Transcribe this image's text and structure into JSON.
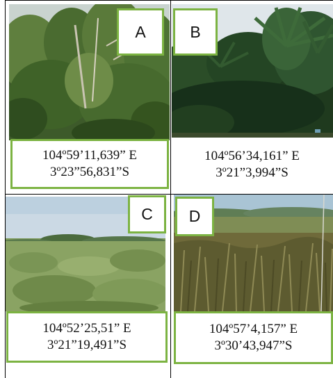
{
  "panels": [
    {
      "letter": "A",
      "longitude": "104º59’11,639” E",
      "latitude": "3º23”56,831”S"
    },
    {
      "letter": "B",
      "longitude": "104º56’34,161” E",
      "latitude": "3º21”3,994”S"
    },
    {
      "letter": "C",
      "longitude": "104º52’25,51” E",
      "latitude": "3º21”19,491”S"
    },
    {
      "letter": "D",
      "longitude": "104º57’4,157” E",
      "latitude": "3º30’43,947”S"
    }
  ],
  "colors": {
    "label_border": "#7cb342",
    "grid_line": "#000000"
  }
}
